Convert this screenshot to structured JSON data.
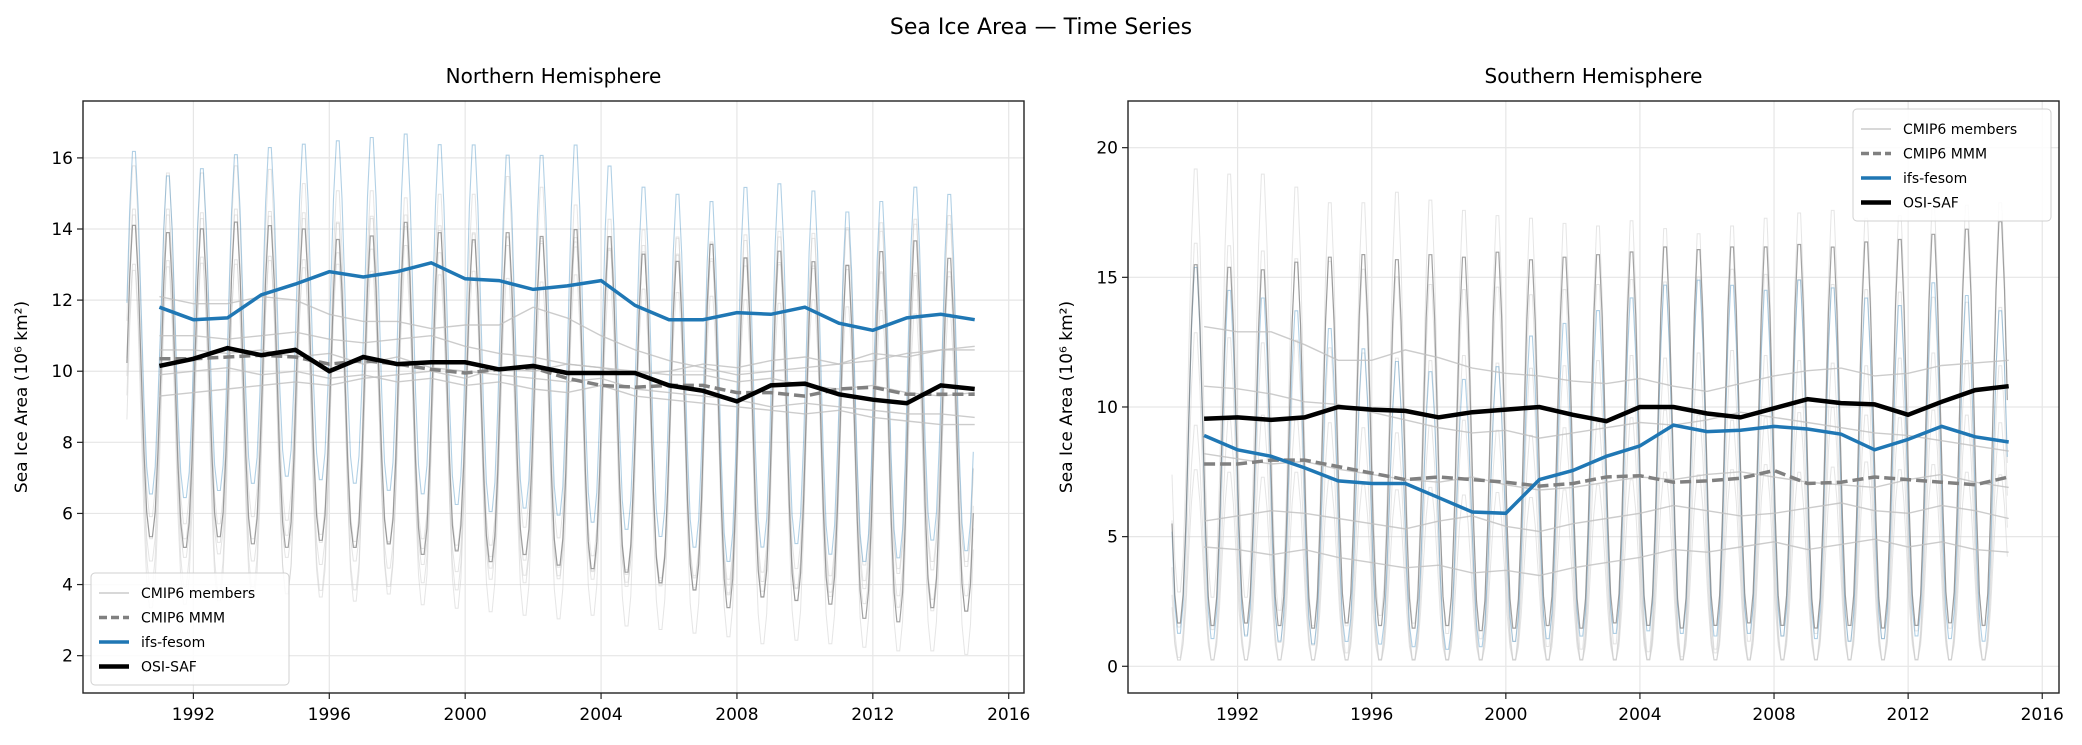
{
  "figure": {
    "title": "Sea Ice Area — Time Series"
  },
  "colors": {
    "members": "#bfbfbf",
    "mmm": "#808080",
    "ifs_fesom": "#1f77b4",
    "osi_saf": "#000000",
    "grid": "#e6e6e6"
  },
  "legend_labels": [
    "CMIP6 members",
    "CMIP6 MMM",
    "ifs-fesom",
    "OSI-SAF"
  ],
  "chart_data": [
    {
      "type": "line",
      "title": "Northern Hemisphere",
      "ylabel": "Sea Ice Area (10⁶ km²)",
      "xlabel": "",
      "xlim": [
        1988.75,
        2016.45
      ],
      "ylim": [
        0.95,
        17.6
      ],
      "xticks": [
        1992,
        1996,
        2000,
        2004,
        2008,
        2012,
        2016
      ],
      "yticks": [
        2,
        4,
        6,
        8,
        10,
        12,
        14,
        16
      ],
      "grid": true,
      "legend_position": "lower-left",
      "monthly_phase": "peak-march",
      "annual_years": [
        1991,
        1992,
        1993,
        1994,
        1995,
        1996,
        1997,
        1998,
        1999,
        2000,
        2001,
        2002,
        2003,
        2004,
        2005,
        2006,
        2007,
        2008,
        2009,
        2010,
        2011,
        2012,
        2013,
        2014,
        2015
      ],
      "monthly_years": [
        1990,
        1991,
        1992,
        1993,
        1994,
        1995,
        1996,
        1997,
        1998,
        1999,
        2000,
        2001,
        2002,
        2003,
        2004,
        2005,
        2006,
        2007,
        2008,
        2009,
        2010,
        2011,
        2012,
        2013,
        2014
      ],
      "members": [
        {
          "annual": [
            12.1,
            11.9,
            11.9,
            12.1,
            12.0,
            11.6,
            11.4,
            11.4,
            11.2,
            11.3,
            11.3,
            11.8,
            11.5,
            11.0,
            10.6,
            10.3,
            10.1,
            9.9,
            10.0,
            10.1,
            10.2,
            10.3,
            10.5,
            10.6,
            10.7
          ],
          "seasonal_amplitude": 5.2
        },
        {
          "annual": [
            11.0,
            11.0,
            10.9,
            11.0,
            11.1,
            10.9,
            10.8,
            10.9,
            11.0,
            10.7,
            10.5,
            10.4,
            10.2,
            10.1,
            10.0,
            9.9,
            9.9,
            9.7,
            9.8,
            9.6,
            9.5,
            9.6,
            9.4,
            9.3,
            9.4
          ],
          "seasonal_amplitude": 4.8
        },
        {
          "annual": [
            10.6,
            10.6,
            10.5,
            10.6,
            10.4,
            10.5,
            10.2,
            10.4,
            10.1,
            10.0,
            9.9,
            9.8,
            9.7,
            9.8,
            9.5,
            9.4,
            9.3,
            9.2,
            9.0,
            9.1,
            9.0,
            8.9,
            8.8,
            8.8,
            8.7
          ],
          "seasonal_amplitude": 5.6
        },
        {
          "annual": [
            9.9,
            10.0,
            10.1,
            9.9,
            10.0,
            9.8,
            9.9,
            9.7,
            9.8,
            9.6,
            9.7,
            9.5,
            9.4,
            9.6,
            9.3,
            9.2,
            9.1,
            9.0,
            8.9,
            8.8,
            8.9,
            8.7,
            8.6,
            8.5,
            8.5
          ],
          "seasonal_amplitude": 4.4
        },
        {
          "annual": [
            9.3,
            9.4,
            9.5,
            9.6,
            9.7,
            9.6,
            9.8,
            9.9,
            10.0,
            9.8,
            10.1,
            10.0,
            10.2,
            10.1,
            9.9,
            10.0,
            10.2,
            10.1,
            10.3,
            10.4,
            10.2,
            10.5,
            10.4,
            10.6,
            10.6
          ],
          "seasonal_amplitude": 5.0
        }
      ],
      "cmip6_mmm": {
        "annual": [
          10.35,
          10.35,
          10.4,
          10.45,
          10.4,
          10.2,
          10.3,
          10.2,
          10.05,
          9.95,
          10.05,
          10.1,
          9.8,
          9.6,
          9.55,
          9.6,
          9.6,
          9.4,
          9.4,
          9.3,
          9.5,
          9.55,
          9.35,
          9.35,
          9.35
        ],
        "monthly_peak": [
          14.3,
          14.1,
          14.2,
          14.4,
          14.3,
          14.2,
          13.9,
          14.0,
          14.4,
          14.1,
          13.9,
          14.1,
          14.0,
          14.2,
          14.0,
          13.5,
          13.3,
          13.8,
          13.4,
          13.6,
          13.3,
          13.2,
          13.6,
          13.9,
          13.4
        ],
        "monthly_trough": [
          5.3,
          5.0,
          5.3,
          5.1,
          5.0,
          5.2,
          5.0,
          5.1,
          4.8,
          4.9,
          4.6,
          4.8,
          4.5,
          4.4,
          4.3,
          4.0,
          3.8,
          3.3,
          3.6,
          3.5,
          3.4,
          3.0,
          2.9,
          3.3,
          3.2
        ]
      },
      "ifs_fesom": {
        "annual": [
          11.8,
          11.45,
          11.5,
          12.15,
          12.45,
          12.8,
          12.65,
          12.8,
          13.05,
          12.6,
          12.55,
          12.3,
          12.4,
          12.55,
          11.85,
          11.45,
          11.45,
          11.65,
          11.6,
          11.8,
          11.35,
          11.15,
          11.5,
          11.6,
          11.45
        ],
        "monthly_peak": [
          16.4,
          15.7,
          15.9,
          16.3,
          16.5,
          16.6,
          16.7,
          16.8,
          16.9,
          16.6,
          16.6,
          16.3,
          16.3,
          16.6,
          16.0,
          15.4,
          15.2,
          15.0,
          15.4,
          15.5,
          15.3,
          14.7,
          15.0,
          15.4,
          15.2
        ],
        "monthly_trough": [
          6.5,
          6.4,
          6.6,
          6.8,
          7.0,
          6.9,
          6.8,
          6.6,
          6.5,
          6.2,
          6.0,
          6.1,
          5.9,
          5.7,
          5.5,
          5.3,
          5.0,
          4.6,
          5.0,
          5.1,
          4.8,
          4.6,
          4.7,
          5.2,
          4.9
        ]
      },
      "osi_saf": {
        "annual": [
          10.15,
          10.35,
          10.65,
          10.45,
          10.6,
          10.0,
          10.4,
          10.2,
          10.25,
          10.25,
          10.05,
          10.15,
          9.95,
          9.95,
          9.95,
          9.6,
          9.45,
          9.15,
          9.6,
          9.65,
          9.35,
          9.2,
          9.1,
          9.6,
          9.5
        ]
      }
    },
    {
      "type": "line",
      "title": "Southern Hemisphere",
      "ylabel": "Sea Ice Area (10⁶ km²)",
      "xlabel": "",
      "xlim": [
        1988.73,
        2016.5
      ],
      "ylim": [
        -1.03,
        21.8
      ],
      "xticks": [
        1992,
        1996,
        2000,
        2004,
        2008,
        2012,
        2016
      ],
      "yticks": [
        0,
        5,
        10,
        15,
        20
      ],
      "grid": true,
      "legend_position": "upper-right",
      "monthly_phase": "peak-september",
      "annual_years": [
        1991,
        1992,
        1993,
        1994,
        1995,
        1996,
        1997,
        1998,
        1999,
        2000,
        2001,
        2002,
        2003,
        2004,
        2005,
        2006,
        2007,
        2008,
        2009,
        2010,
        2011,
        2012,
        2013,
        2014,
        2015
      ],
      "monthly_years": [
        1990,
        1991,
        1992,
        1993,
        1994,
        1995,
        1996,
        1997,
        1998,
        1999,
        2000,
        2001,
        2002,
        2003,
        2004,
        2005,
        2006,
        2007,
        2008,
        2009,
        2010,
        2011,
        2012,
        2013,
        2014
      ],
      "members": [
        {
          "annual": [
            13.1,
            12.9,
            12.9,
            12.4,
            11.8,
            11.8,
            12.2,
            11.9,
            11.5,
            11.3,
            11.2,
            11.0,
            10.9,
            11.1,
            10.8,
            10.6,
            10.9,
            11.2,
            11.4,
            11.5,
            11.2,
            11.3,
            11.6,
            11.7,
            11.8
          ],
          "seasonal_amplitude": 8.6
        },
        {
          "annual": [
            10.8,
            10.7,
            10.5,
            10.2,
            10.1,
            9.8,
            9.5,
            9.2,
            9.0,
            9.1,
            8.8,
            9.0,
            9.2,
            9.4,
            9.3,
            9.5,
            9.8,
            9.6,
            9.4,
            9.2,
            9.0,
            8.9,
            8.7,
            8.5,
            8.3
          ],
          "seasonal_amplitude": 7.8
        },
        {
          "annual": [
            8.2,
            8.0,
            7.8,
            7.9,
            7.6,
            7.4,
            7.2,
            7.1,
            7.3,
            7.0,
            6.8,
            6.9,
            7.1,
            7.3,
            7.2,
            7.4,
            7.5,
            7.3,
            7.1,
            7.0,
            6.9,
            7.2,
            7.4,
            7.1,
            6.9
          ],
          "seasonal_amplitude": 6.6
        },
        {
          "annual": [
            5.6,
            5.8,
            6.0,
            5.9,
            5.7,
            5.5,
            5.3,
            5.6,
            5.8,
            5.4,
            5.2,
            5.5,
            5.7,
            5.9,
            6.2,
            6.0,
            5.8,
            5.9,
            6.1,
            6.3,
            6.0,
            5.9,
            6.2,
            6.0,
            5.7
          ],
          "seasonal_amplitude": 5.2
        },
        {
          "annual": [
            4.6,
            4.5,
            4.3,
            4.5,
            4.2,
            4.0,
            3.8,
            3.9,
            3.6,
            3.7,
            3.5,
            3.8,
            4.0,
            4.2,
            4.5,
            4.4,
            4.6,
            4.8,
            4.5,
            4.7,
            4.9,
            4.6,
            4.8,
            4.5,
            4.4
          ],
          "seasonal_amplitude": 4.2
        }
      ],
      "cmip6_mmm": {
        "annual": [
          7.8,
          7.8,
          7.95,
          7.95,
          7.7,
          7.45,
          7.2,
          7.3,
          7.2,
          7.1,
          6.95,
          7.05,
          7.3,
          7.35,
          7.1,
          7.15,
          7.25,
          7.55,
          7.05,
          7.1,
          7.3,
          7.2,
          7.1,
          7.0,
          7.3
        ],
        "monthly_peak": [
          15.8,
          15.7,
          15.6,
          15.9,
          16.1,
          16.2,
          16.0,
          16.2,
          16.1,
          16.3,
          16.0,
          16.1,
          16.2,
          16.3,
          16.5,
          16.4,
          16.5,
          16.5,
          16.6,
          16.5,
          16.7,
          16.8,
          17.0,
          17.2,
          17.5
        ],
        "monthly_trough": [
          1.6,
          1.5,
          1.6,
          1.5,
          1.4,
          1.6,
          1.5,
          1.4,
          1.5,
          1.3,
          1.4,
          1.5,
          1.4,
          1.6,
          1.5,
          1.4,
          1.5,
          1.6,
          1.5,
          1.4,
          1.5,
          1.4,
          1.5,
          1.6,
          1.5
        ]
      },
      "ifs_fesom": {
        "annual": [
          8.9,
          8.35,
          8.1,
          7.65,
          7.15,
          7.05,
          7.05,
          6.5,
          5.95,
          5.9,
          7.2,
          7.55,
          8.1,
          8.5,
          9.3,
          9.05,
          9.1,
          9.25,
          9.15,
          8.95,
          8.35,
          8.75,
          9.25,
          8.85,
          8.65
        ],
        "monthly_peak": [
          15.7,
          14.8,
          14.5,
          14.0,
          13.3,
          12.5,
          12.0,
          11.6,
          11.3,
          11.8,
          13.0,
          13.5,
          14.0,
          14.5,
          15.0,
          15.2,
          15.0,
          14.8,
          15.2,
          14.9,
          14.5,
          14.2,
          15.1,
          14.6,
          14.0
        ],
        "monthly_trough": [
          1.2,
          1.0,
          1.1,
          0.9,
          0.8,
          0.9,
          0.8,
          0.7,
          0.6,
          0.7,
          0.9,
          1.0,
          1.1,
          1.2,
          1.3,
          1.2,
          1.1,
          1.2,
          1.1,
          1.0,
          0.9,
          1.0,
          1.1,
          1.0,
          0.9
        ]
      },
      "osi_saf": {
        "annual": [
          9.55,
          9.6,
          9.5,
          9.6,
          10.0,
          9.9,
          9.85,
          9.6,
          9.8,
          9.9,
          10.0,
          9.7,
          9.45,
          10.0,
          10.0,
          9.75,
          9.6,
          9.95,
          10.3,
          10.15,
          10.1,
          9.7,
          10.2,
          10.65,
          10.8
        ]
      }
    }
  ]
}
